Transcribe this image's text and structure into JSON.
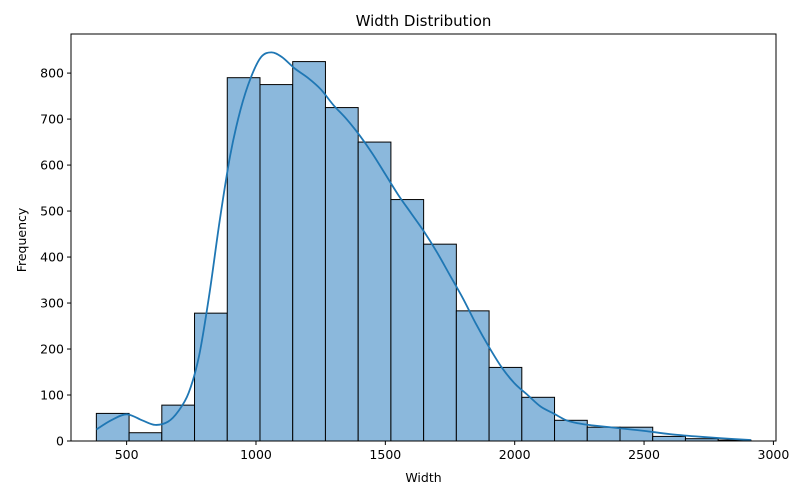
{
  "chart_data": {
    "type": "bar",
    "title": "Width Distribution",
    "xlabel": "Width",
    "ylabel": "Frequency",
    "xlim": [
      285,
      3010
    ],
    "ylim": [
      0,
      885
    ],
    "xticks": [
      500,
      1000,
      1500,
      2000,
      2500,
      3000
    ],
    "yticks": [
      0,
      100,
      200,
      300,
      400,
      500,
      600,
      700,
      800
    ],
    "bin_edges": [
      383,
      509.5,
      636,
      762.5,
      889,
      1015.5,
      1142,
      1268.5,
      1395,
      1521.5,
      1648,
      1774.5,
      1901,
      2027.5,
      2154,
      2280.5,
      2407,
      2533.5,
      2660,
      2786.5,
      2913
    ],
    "counts": [
      60,
      18,
      78,
      278,
      790,
      775,
      825,
      725,
      650,
      525,
      428,
      283,
      160,
      95,
      45,
      30,
      30,
      10,
      5,
      2
    ],
    "kde": {
      "x": [
        383,
        440,
        500,
        560,
        610,
        660,
        700,
        740,
        780,
        820,
        860,
        900,
        940,
        980,
        1020,
        1060,
        1100,
        1150,
        1200,
        1250,
        1300,
        1350,
        1400,
        1450,
        1500,
        1550,
        1600,
        1650,
        1700,
        1750,
        1800,
        1850,
        1900,
        1950,
        2000,
        2050,
        2100,
        2150,
        2200,
        2250,
        2300,
        2400,
        2500,
        2600,
        2700,
        2800,
        2913
      ],
      "y": [
        25,
        45,
        58,
        45,
        35,
        42,
        65,
        105,
        185,
        320,
        480,
        620,
        720,
        790,
        835,
        845,
        835,
        810,
        790,
        765,
        730,
        700,
        665,
        625,
        580,
        535,
        495,
        455,
        410,
        360,
        310,
        255,
        205,
        160,
        125,
        100,
        75,
        60,
        45,
        38,
        34,
        28,
        22,
        15,
        10,
        6,
        2
      ]
    },
    "colors": {
      "bar_fill": "#8bb8dc",
      "bar_edge": "#000000",
      "kde_line": "#1f77b4"
    },
    "grid": false,
    "legend": "none"
  }
}
